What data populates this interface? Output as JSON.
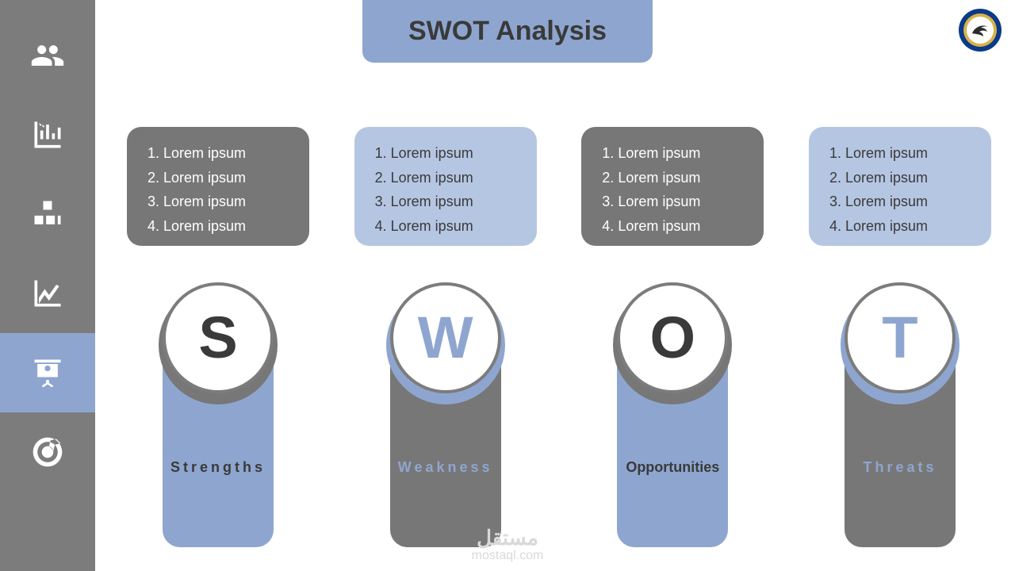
{
  "colors": {
    "sidebar_bg": "#7d7c7c",
    "sidebar_active_bg": "#8ea6cf",
    "icon_fill": "#ffffff",
    "page_bg": "#ffffff",
    "blue": "#8ea6cf",
    "blue_light": "#b5c6e2",
    "gray_dark": "#787777",
    "title_text": "#3a3a3a",
    "letter_dark": "#3a3a3a",
    "letter_blue": "#8ea6cf",
    "list_text_light": "#ffffff",
    "list_text_dark": "#3a3a3a",
    "label_dark": "#3a3a3a",
    "label_blue": "#8ea6cf",
    "watermark": "#d9d9d9",
    "circle_border": "#7d7c7c"
  },
  "title": {
    "text": "SWOT Analysis",
    "bg": "#8ea6cf",
    "color": "#3a3a3a",
    "fontsize": 34,
    "fontweight": 700
  },
  "sidebar": {
    "items": [
      {
        "name": "people-icon",
        "active": false
      },
      {
        "name": "bar-chart-icon",
        "active": false
      },
      {
        "name": "boxes-icon",
        "active": false
      },
      {
        "name": "line-chart-icon",
        "active": false
      },
      {
        "name": "presentation-icon",
        "active": true
      },
      {
        "name": "target-icon",
        "active": false
      }
    ]
  },
  "swot": {
    "columns": [
      {
        "letter": "S",
        "label": "Strengths",
        "letter_color": "#3a3a3a",
        "label_color": "#3a3a3a",
        "label_letterspacing": "4px",
        "circle_border_width": 4,
        "list_bg": "#787777",
        "list_text": "#ffffff",
        "pillar_bg": "#8ea6cf",
        "arc_bg": "#787777",
        "items": [
          "Lorem ipsum",
          "Lorem ipsum",
          "Lorem ipsum",
          "Lorem ipsum"
        ]
      },
      {
        "letter": "W",
        "label": "Weakness",
        "letter_color": "#8ea6cf",
        "label_color": "#8ea6cf",
        "label_letterspacing": "4px",
        "circle_border_width": 4,
        "list_bg": "#b5c6e2",
        "list_text": "#3a3a3a",
        "pillar_bg": "#787777",
        "arc_bg": "#8ea6cf",
        "items": [
          "Lorem ipsum",
          "Lorem ipsum",
          "Lorem ipsum",
          "Lorem ipsum"
        ]
      },
      {
        "letter": "O",
        "label": "Opportunities",
        "letter_color": "#3a3a3a",
        "label_color": "#3a3a3a",
        "label_letterspacing": "0px",
        "circle_border_width": 4,
        "list_bg": "#787777",
        "list_text": "#ffffff",
        "pillar_bg": "#8ea6cf",
        "arc_bg": "#787777",
        "items": [
          "Lorem ipsum",
          "Lorem ipsum",
          "Lorem ipsum",
          "Lorem ipsum"
        ]
      },
      {
        "letter": "T",
        "label": "Threats",
        "letter_color": "#8ea6cf",
        "label_color": "#8ea6cf",
        "label_letterspacing": "4px",
        "circle_border_width": 4,
        "list_bg": "#b5c6e2",
        "list_text": "#3a3a3a",
        "pillar_bg": "#787777",
        "arc_bg": "#8ea6cf",
        "items": [
          "Lorem ipsum",
          "Lorem ipsum",
          "Lorem ipsum",
          "Lorem ipsum"
        ]
      }
    ]
  },
  "watermark": {
    "arabic": "مستقل",
    "latin": "mostaql.com"
  },
  "logo": {
    "outer_ring": "#0b3a87",
    "inner_ring": "#d9b24a",
    "center": "#ffffff"
  }
}
